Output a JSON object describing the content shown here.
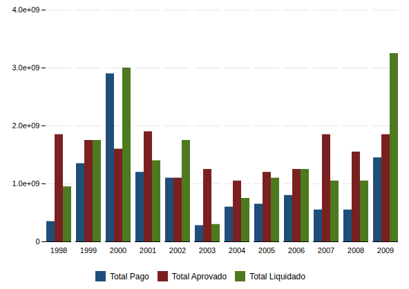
{
  "chart_data": {
    "type": "bar",
    "categories": [
      "1998",
      "1999",
      "2000",
      "2001",
      "2002",
      "2003",
      "2004",
      "2005",
      "2006",
      "2007",
      "2008",
      "2009"
    ],
    "series": [
      {
        "name": "Total Pago",
        "color": "#1f4e79",
        "values": [
          350000000.0,
          1350000000.0,
          2900000000.0,
          1200000000.0,
          1100000000.0,
          280000000.0,
          600000000.0,
          650000000.0,
          800000000.0,
          550000000.0,
          550000000.0,
          1450000000.0
        ]
      },
      {
        "name": "Total Aprovado",
        "color": "#7b2020",
        "values": [
          1850000000.0,
          1750000000.0,
          1600000000.0,
          1900000000.0,
          1100000000.0,
          1250000000.0,
          1050000000.0,
          1200000000.0,
          1250000000.0,
          1850000000.0,
          1550000000.0,
          1850000000.0
        ]
      },
      {
        "name": "Total Liquidado",
        "color": "#4d7a1e",
        "values": [
          950000000.0,
          1750000000.0,
          3000000000.0,
          1400000000.0,
          1750000000.0,
          300000000.0,
          750000000.0,
          1100000000.0,
          1250000000.0,
          1050000000.0,
          1050000000.0,
          3250000000.0
        ]
      }
    ],
    "ylim": [
      0,
      4000000000.0
    ],
    "yticks": [
      0,
      {
        "value": 1000000000.0,
        "label": "1.0e+09"
      },
      {
        "value": 2000000000.0,
        "label": "2.0e+09"
      },
      {
        "value": 3000000000.0,
        "label": "3.0e+09"
      },
      {
        "value": 4000000000.0,
        "label": "4.0e+09"
      }
    ],
    "grid": true,
    "legend": "bottom"
  }
}
